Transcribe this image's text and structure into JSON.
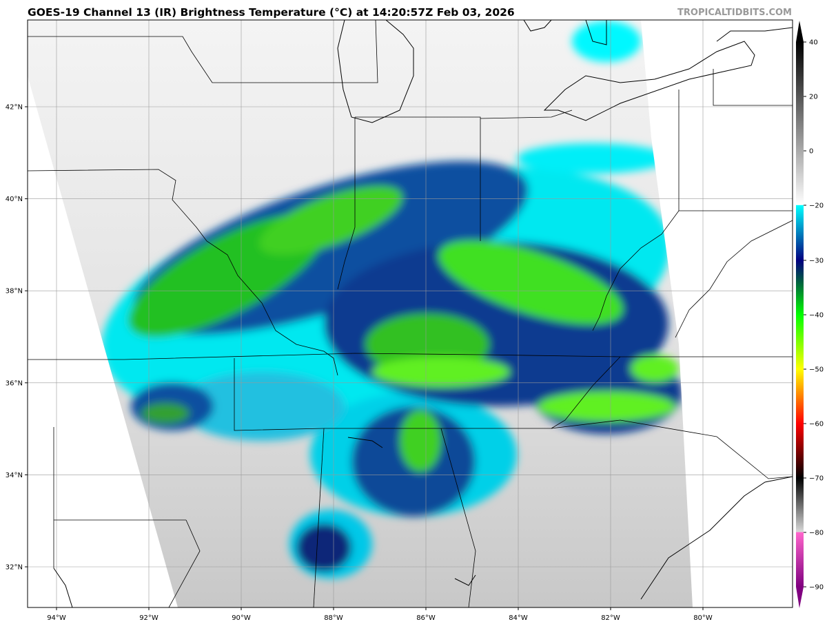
{
  "header": {
    "title": "GOES-19 Channel 13 (IR) Brightness Temperature (°C) at 14:20:57Z Feb 03, 2026",
    "watermark": "TROPICALTIDBITS.COM"
  },
  "map": {
    "lon_ticks": [
      "94°W",
      "92°W",
      "90°W",
      "88°W",
      "86°W",
      "84°W",
      "82°W",
      "80°W"
    ],
    "lon_values": [
      -94,
      -92,
      -90,
      -88,
      -86,
      -84,
      -82,
      -80
    ],
    "lat_ticks": [
      "42°N",
      "40°N",
      "38°N",
      "36°N",
      "34°N",
      "32°N"
    ],
    "lat_values": [
      42,
      40,
      38,
      36,
      34,
      32
    ],
    "extent": {
      "lon": [
        -94.6,
        -78.0
      ],
      "lat": [
        31.1,
        43.9
      ]
    },
    "grid": true
  },
  "colorbar": {
    "ticks": [
      "40",
      "20",
      "0",
      "−20",
      "−30",
      "−40",
      "−50",
      "−60",
      "−70",
      "−80",
      "−90"
    ],
    "tick_values": [
      40,
      20,
      0,
      -20,
      -30,
      -40,
      -50,
      -60,
      -70,
      -80,
      -90
    ],
    "stops": [
      {
        "v": 40,
        "c": "#000000"
      },
      {
        "v": -19.9,
        "c": "#ffffff"
      },
      {
        "v": -20,
        "c": "#00ffff"
      },
      {
        "v": -26,
        "c": "#0066b0"
      },
      {
        "v": -30,
        "c": "#000080"
      },
      {
        "v": -34,
        "c": "#006040"
      },
      {
        "v": -40,
        "c": "#00ff00"
      },
      {
        "v": -50,
        "c": "#ffff00"
      },
      {
        "v": -55,
        "c": "#ff8000"
      },
      {
        "v": -60,
        "c": "#ff0000"
      },
      {
        "v": -70,
        "c": "#000000"
      },
      {
        "v": -79.9,
        "c": "#d8d8d8"
      },
      {
        "v": -80,
        "c": "#ff66cc"
      },
      {
        "v": -90,
        "c": "#800080"
      }
    ]
  }
}
